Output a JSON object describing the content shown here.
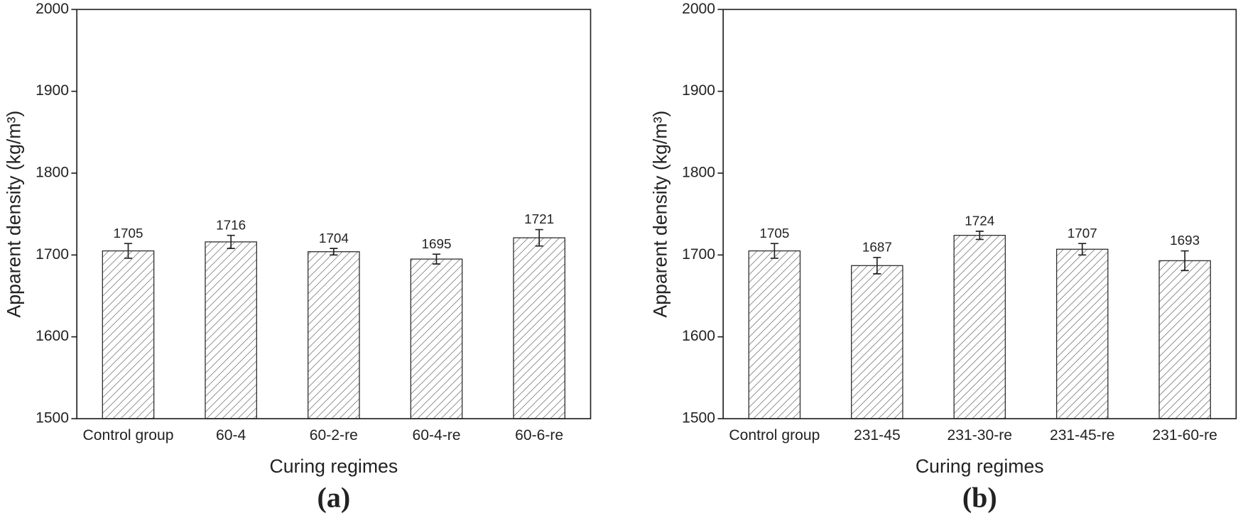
{
  "chart_data": [
    {
      "type": "bar",
      "caption": "(a)",
      "xlabel": "Curing regimes",
      "ylabel": "Apparent density (kg/m³)",
      "categories": [
        "Control group",
        "60-4",
        "60-2-re",
        "60-4-re",
        "60-6-re"
      ],
      "values": [
        1705,
        1716,
        1704,
        1695,
        1721
      ],
      "errors": [
        9,
        8,
        4,
        6,
        10
      ],
      "color": "#333333",
      "ylim": [
        1500,
        2000
      ],
      "yticks": [
        1500,
        1600,
        1700,
        1800,
        1900,
        2000
      ]
    },
    {
      "type": "bar",
      "caption": "(b)",
      "xlabel": "Curing regimes",
      "ylabel": "Apparent density (kg/m³)",
      "categories": [
        "Control group",
        "231-45",
        "231-30-re",
        "231-45-re",
        "231-60-re"
      ],
      "values": [
        1705,
        1687,
        1724,
        1707,
        1693
      ],
      "errors": [
        9,
        10,
        5,
        7,
        12
      ],
      "color": "#333333",
      "ylim": [
        1500,
        2000
      ],
      "yticks": [
        1500,
        1600,
        1700,
        1800,
        1900,
        2000
      ]
    }
  ]
}
